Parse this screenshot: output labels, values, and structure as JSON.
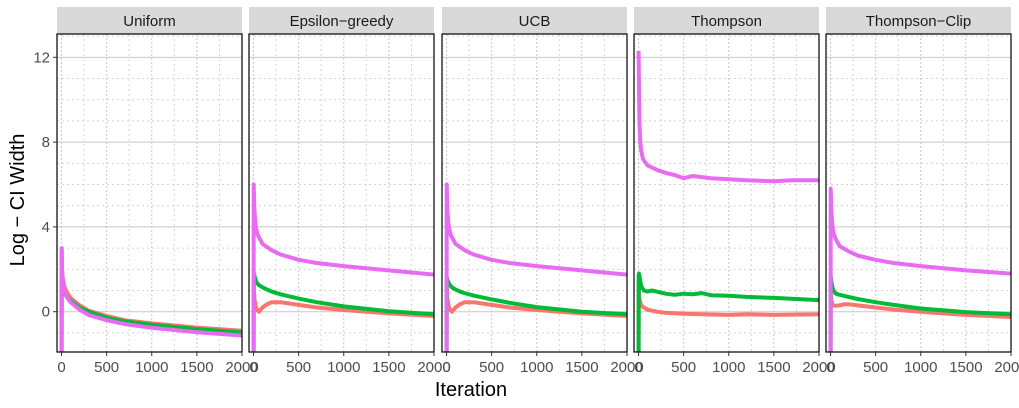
{
  "chart_data": {
    "type": "line",
    "xlabel": "Iteration",
    "ylabel": "Log − CI Width",
    "xlim": [
      -50,
      2000
    ],
    "ylim": [
      -1.9,
      13.1
    ],
    "x_ticks": [
      0,
      500,
      1000,
      1500,
      2000
    ],
    "x_tick_labels": [
      "0",
      "500",
      "1000",
      "1500",
      "2000"
    ],
    "y_ticks": [
      0,
      4,
      8,
      12
    ],
    "y_tick_labels": [
      "0",
      "4",
      "8",
      "12"
    ],
    "grid": true,
    "facets": [
      {
        "title": "Uniform",
        "series": [
          {
            "name": "red",
            "color": "#f8766d",
            "x": [
              1,
              2,
              5,
              10,
              30,
              60,
              100,
              200,
              300,
              500,
              700,
              1000,
              1500,
              2000
            ],
            "y": [
              -1.9,
              2.9,
              2.2,
              1.7,
              1.2,
              0.9,
              0.65,
              0.3,
              0.05,
              -0.2,
              -0.4,
              -0.55,
              -0.75,
              -0.9
            ]
          },
          {
            "name": "green",
            "color": "#00ba38",
            "x": [
              1,
              2,
              5,
              10,
              30,
              60,
              100,
              200,
              300,
              500,
              700,
              1000,
              1500,
              2000
            ],
            "y": [
              -1.9,
              1.5,
              1.3,
              1.1,
              0.9,
              0.7,
              0.5,
              0.2,
              0.0,
              -0.28,
              -0.45,
              -0.62,
              -0.82,
              -0.98
            ]
          },
          {
            "name": "purple",
            "color": "#e76bf3",
            "x": [
              1,
              2,
              5,
              10,
              30,
              60,
              100,
              200,
              300,
              500,
              700,
              1000,
              1500,
              2000
            ],
            "y": [
              -1.9,
              3.0,
              2.0,
              1.5,
              1.0,
              0.7,
              0.45,
              0.1,
              -0.15,
              -0.4,
              -0.58,
              -0.76,
              -0.97,
              -1.12
            ]
          }
        ]
      },
      {
        "title": "Epsilon−greedy",
        "series": [
          {
            "name": "red",
            "color": "#f8766d",
            "x": [
              1,
              2,
              5,
              10,
              30,
              60,
              100,
              150,
              200,
              300,
              500,
              700,
              1000,
              1500,
              2000
            ],
            "y": [
              -1.9,
              1.3,
              1.0,
              0.6,
              0.15,
              0.0,
              0.2,
              0.35,
              0.45,
              0.45,
              0.32,
              0.2,
              0.08,
              -0.08,
              -0.2
            ]
          },
          {
            "name": "green",
            "color": "#00ba38",
            "x": [
              1,
              2,
              5,
              10,
              30,
              60,
              100,
              150,
              200,
              300,
              500,
              700,
              1000,
              1500,
              2000
            ],
            "y": [
              -1.9,
              1.6,
              1.8,
              1.7,
              1.4,
              1.25,
              1.15,
              1.05,
              0.95,
              0.82,
              0.62,
              0.45,
              0.25,
              0.02,
              -0.12
            ]
          },
          {
            "name": "purple",
            "color": "#e76bf3",
            "x": [
              1,
              2,
              5,
              10,
              20,
              30,
              50,
              100,
              200,
              300,
              500,
              700,
              1000,
              1500,
              2000
            ],
            "y": [
              -1.9,
              6.0,
              5.5,
              4.8,
              4.2,
              3.9,
              3.6,
              3.2,
              2.9,
              2.7,
              2.45,
              2.3,
              2.15,
              1.95,
              1.75
            ]
          }
        ]
      },
      {
        "title": "UCB",
        "series": [
          {
            "name": "red",
            "color": "#f8766d",
            "x": [
              1,
              2,
              5,
              10,
              30,
              60,
              100,
              150,
              200,
              300,
              500,
              700,
              1000,
              1500,
              2000
            ],
            "y": [
              -1.9,
              1.3,
              1.0,
              0.6,
              0.15,
              0.0,
              0.2,
              0.35,
              0.45,
              0.45,
              0.32,
              0.2,
              0.08,
              -0.08,
              -0.2
            ]
          },
          {
            "name": "green",
            "color": "#00ba38",
            "x": [
              1,
              2,
              5,
              10,
              30,
              60,
              100,
              150,
              200,
              300,
              500,
              700,
              1000,
              1500,
              2000
            ],
            "y": [
              -1.9,
              1.5,
              1.6,
              1.5,
              1.3,
              1.15,
              1.05,
              0.95,
              0.88,
              0.76,
              0.58,
              0.42,
              0.22,
              0.0,
              -0.12
            ]
          },
          {
            "name": "purple",
            "color": "#e76bf3",
            "x": [
              1,
              2,
              5,
              10,
              20,
              30,
              50,
              100,
              200,
              300,
              500,
              700,
              1000,
              1500,
              2000
            ],
            "y": [
              -1.9,
              6.0,
              5.5,
              4.8,
              4.2,
              3.9,
              3.6,
              3.2,
              2.9,
              2.7,
              2.45,
              2.3,
              2.15,
              1.95,
              1.75
            ]
          }
        ]
      },
      {
        "title": "Thompson",
        "series": [
          {
            "name": "red",
            "color": "#f8766d",
            "x": [
              1,
              2,
              5,
              10,
              30,
              60,
              100,
              150,
              200,
              300,
              500,
              700,
              1000,
              1200,
              1500,
              2000
            ],
            "y": [
              -1.9,
              1.3,
              0.9,
              0.6,
              0.3,
              0.2,
              0.1,
              0.05,
              0.0,
              -0.05,
              -0.1,
              -0.12,
              -0.15,
              -0.12,
              -0.15,
              -0.12
            ]
          },
          {
            "name": "green",
            "color": "#00ba38",
            "x": [
              1,
              2,
              5,
              10,
              30,
              60,
              100,
              150,
              200,
              300,
              400,
              500,
              600,
              700,
              800,
              1000,
              1200,
              1500,
              2000
            ],
            "y": [
              -1.9,
              1.7,
              1.8,
              1.7,
              1.2,
              1.0,
              0.95,
              1.0,
              0.95,
              0.85,
              0.8,
              0.85,
              0.82,
              0.88,
              0.78,
              0.75,
              0.7,
              0.65,
              0.55
            ]
          },
          {
            "name": "purple",
            "color": "#e76bf3",
            "x": [
              1,
              5,
              10,
              20,
              30,
              50,
              100,
              200,
              300,
              400,
              500,
              600,
              700,
              800,
              1000,
              1200,
              1500,
              1700,
              2000
            ],
            "y": [
              12.3,
              10.5,
              9.0,
              8.0,
              7.6,
              7.2,
              6.9,
              6.7,
              6.55,
              6.45,
              6.3,
              6.4,
              6.35,
              6.3,
              6.25,
              6.2,
              6.15,
              6.2,
              6.2
            ]
          }
        ]
      },
      {
        "title": "Thompson−Clip",
        "series": [
          {
            "name": "red",
            "color": "#f8766d",
            "x": [
              1,
              2,
              5,
              10,
              30,
              60,
              100,
              150,
              200,
              300,
              500,
              700,
              1000,
              1500,
              2000
            ],
            "y": [
              -1.9,
              1.2,
              0.9,
              0.5,
              0.3,
              0.28,
              0.3,
              0.35,
              0.35,
              0.3,
              0.2,
              0.1,
              0.0,
              -0.15,
              -0.25
            ]
          },
          {
            "name": "green",
            "color": "#00ba38",
            "x": [
              1,
              2,
              5,
              10,
              30,
              60,
              100,
              150,
              200,
              300,
              500,
              700,
              1000,
              1500,
              2000
            ],
            "y": [
              -1.9,
              1.5,
              1.6,
              1.4,
              1.0,
              0.85,
              0.8,
              0.75,
              0.7,
              0.6,
              0.45,
              0.32,
              0.15,
              -0.02,
              -0.12
            ]
          },
          {
            "name": "purple",
            "color": "#e76bf3",
            "x": [
              1,
              2,
              5,
              10,
              20,
              30,
              50,
              100,
              200,
              300,
              500,
              700,
              1000,
              1500,
              2000
            ],
            "y": [
              -1.9,
              5.8,
              5.3,
              4.7,
              4.1,
              3.8,
              3.5,
              3.1,
              2.85,
              2.65,
              2.45,
              2.3,
              2.15,
              1.95,
              1.8
            ]
          }
        ]
      }
    ]
  }
}
